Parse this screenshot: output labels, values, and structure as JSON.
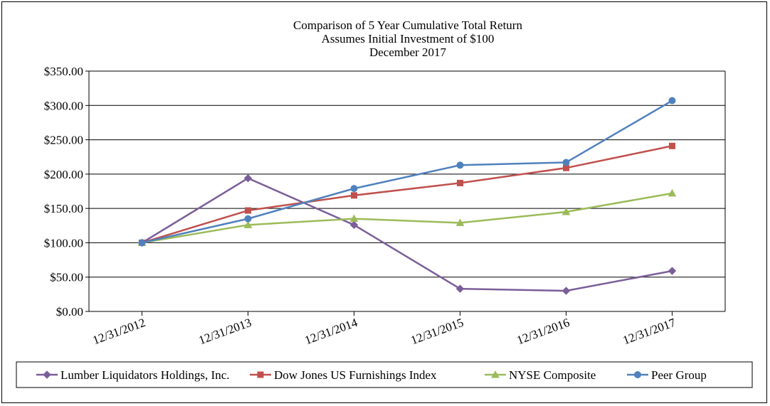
{
  "chart_data": {
    "type": "line",
    "title_lines": [
      "Comparison of 5 Year Cumulative Total Return",
      "Assumes Initial Investment of $100",
      "December 2017"
    ],
    "categories": [
      "12/31/2012",
      "12/31/2013",
      "12/31/2014",
      "12/31/2015",
      "12/31/2016",
      "12/31/2017"
    ],
    "ylim": [
      0,
      350
    ],
    "yticks": [
      0,
      50,
      100,
      150,
      200,
      250,
      300,
      350
    ],
    "ytick_labels": [
      "$0.00",
      "$50.00",
      "$100.00",
      "$150.00",
      "$200.00",
      "$250.00",
      "$300.00",
      "$350.00"
    ],
    "grid": true,
    "legend_position": "bottom",
    "series": [
      {
        "name": "Lumber Liquidators Holdings, Inc.",
        "color": "#7b5e99",
        "marker": "diamond",
        "values": [
          100,
          194,
          126,
          33,
          30,
          59
        ]
      },
      {
        "name": "Dow Jones US Furnishings Index",
        "color": "#c0504d",
        "marker": "square",
        "values": [
          100,
          147,
          169,
          187,
          209,
          241
        ]
      },
      {
        "name": "NYSE Composite",
        "color": "#9bbb59",
        "marker": "triangle",
        "values": [
          100,
          126,
          135,
          129,
          145,
          172
        ]
      },
      {
        "name": "Peer Group",
        "color": "#4f81bd",
        "marker": "circle",
        "values": [
          100,
          135,
          179,
          213,
          217,
          307
        ]
      }
    ]
  }
}
